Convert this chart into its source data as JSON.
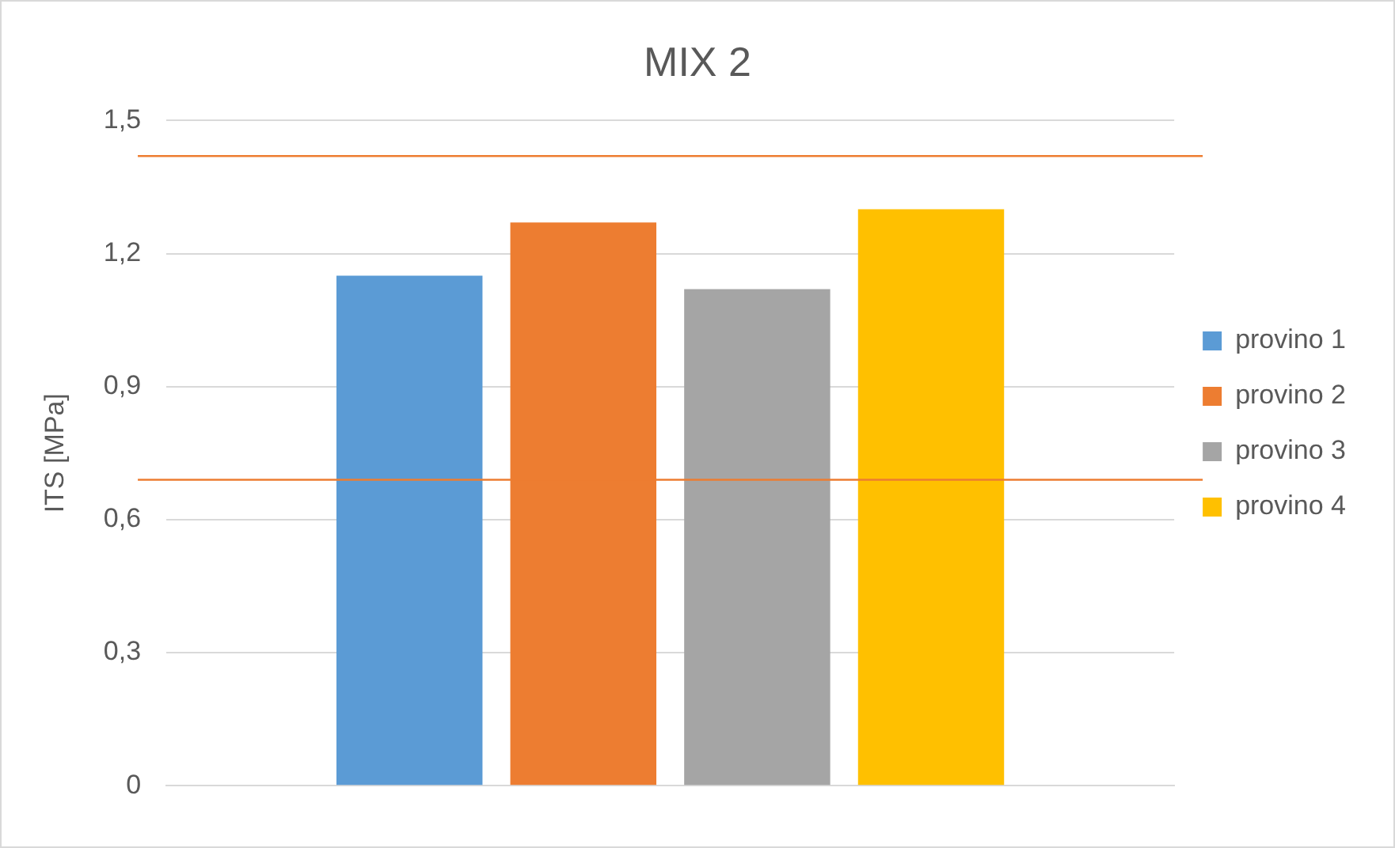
{
  "chart_data": {
    "type": "bar",
    "title": "MIX 2",
    "ylabel": "ITS [MPa]",
    "categories": [
      null
    ],
    "series": [
      {
        "name": "provino 1",
        "color": "#5b9bd5",
        "values": [
          1.15
        ]
      },
      {
        "name": "provino 2",
        "color": "#ed7d31",
        "values": [
          1.27
        ]
      },
      {
        "name": "provino 3",
        "color": "#a5a5a5",
        "values": [
          1.12
        ]
      },
      {
        "name": "provino 4",
        "color": "#ffc000",
        "values": [
          1.3
        ]
      }
    ],
    "ylim": [
      0,
      1.5
    ],
    "yticks": [
      {
        "value": 0,
        "label": "0"
      },
      {
        "value": 0.3,
        "label": "0,3"
      },
      {
        "value": 0.6,
        "label": "0,6"
      },
      {
        "value": 0.9,
        "label": "0,9"
      },
      {
        "value": 1.2,
        "label": "1,2"
      },
      {
        "value": 1.5,
        "label": "1,5"
      }
    ],
    "ref_lines": [
      {
        "axis": "y",
        "value": 1.42,
        "color": "#ed7d31"
      },
      {
        "axis": "y",
        "value": 0.69,
        "color": "#ed7d31"
      }
    ],
    "grid": "y",
    "legend": "right"
  }
}
